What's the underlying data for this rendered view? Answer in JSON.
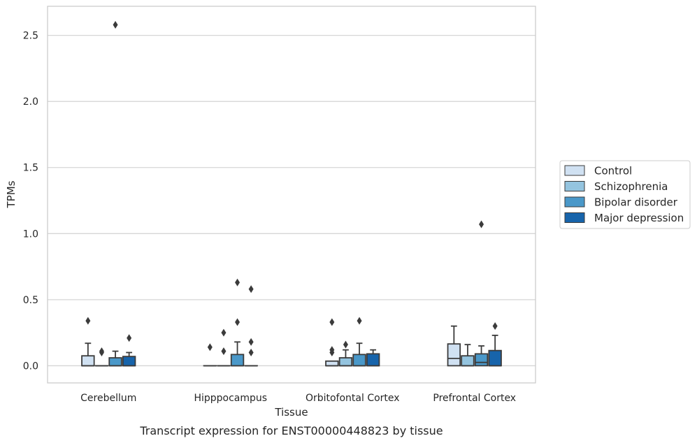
{
  "chart_data": {
    "type": "box",
    "caption": "Transcript expression for ENST00000448823 by tissue",
    "xlabel": "Tissue",
    "ylabel": "TPMs",
    "ylim": [
      -0.13,
      2.72
    ],
    "yticks": [
      "0.0",
      "0.5",
      "1.0",
      "1.5",
      "2.0",
      "2.5"
    ],
    "categories": [
      "Cerebellum",
      "Hipppocampus",
      "Orbitofontal Cortex",
      "Prefrontal Cortex"
    ],
    "grid": true,
    "legend_position": "right",
    "series": [
      {
        "name": "Control",
        "color": "#d0e1f2",
        "boxes": [
          {
            "q1": 0.0,
            "median": 0.0,
            "q3": 0.075,
            "whisker_low": 0.0,
            "whisker_high": 0.17,
            "outliers": [
              0.34
            ]
          },
          {
            "q1": 0.0,
            "median": 0.0,
            "q3": 0.0,
            "whisker_low": 0.0,
            "whisker_high": 0.0,
            "outliers": [
              0.14
            ]
          },
          {
            "q1": 0.0,
            "median": 0.0,
            "q3": 0.035,
            "whisker_low": 0.0,
            "whisker_high": 0.035,
            "outliers": [
              0.1,
              0.12,
              0.33
            ]
          },
          {
            "q1": 0.0,
            "median": 0.055,
            "q3": 0.165,
            "whisker_low": 0.0,
            "whisker_high": 0.3,
            "outliers": []
          }
        ]
      },
      {
        "name": "Schizophrenia",
        "color": "#94c4df",
        "boxes": [
          {
            "q1": 0.0,
            "median": 0.0,
            "q3": 0.0,
            "whisker_low": 0.0,
            "whisker_high": 0.0,
            "outliers": [
              0.1,
              0.11
            ]
          },
          {
            "q1": 0.0,
            "median": 0.0,
            "q3": 0.0,
            "whisker_low": 0.0,
            "whisker_high": 0.0,
            "outliers": [
              0.11,
              0.25
            ]
          },
          {
            "q1": 0.0,
            "median": 0.0,
            "q3": 0.06,
            "whisker_low": 0.0,
            "whisker_high": 0.12,
            "outliers": [
              0.16
            ]
          },
          {
            "q1": 0.0,
            "median": 0.0,
            "q3": 0.075,
            "whisker_low": 0.0,
            "whisker_high": 0.16,
            "outliers": []
          }
        ]
      },
      {
        "name": "Bipolar disorder",
        "color": "#4a98c9",
        "boxes": [
          {
            "q1": 0.0,
            "median": 0.0,
            "q3": 0.06,
            "whisker_low": 0.0,
            "whisker_high": 0.11,
            "outliers": [
              2.58
            ]
          },
          {
            "q1": 0.0,
            "median": 0.0,
            "q3": 0.085,
            "whisker_low": 0.0,
            "whisker_high": 0.18,
            "outliers": [
              0.33,
              0.63
            ]
          },
          {
            "q1": 0.0,
            "median": 0.0,
            "q3": 0.085,
            "whisker_low": 0.0,
            "whisker_high": 0.17,
            "outliers": [
              0.34
            ]
          },
          {
            "q1": 0.0,
            "median": 0.025,
            "q3": 0.09,
            "whisker_low": 0.0,
            "whisker_high": 0.15,
            "outliers": [
              1.07
            ]
          }
        ]
      },
      {
        "name": "Major depression",
        "color": "#1764ab",
        "boxes": [
          {
            "q1": 0.0,
            "median": 0.0,
            "q3": 0.07,
            "whisker_low": 0.0,
            "whisker_high": 0.1,
            "outliers": [
              0.21
            ]
          },
          {
            "q1": 0.0,
            "median": 0.0,
            "q3": 0.0,
            "whisker_low": 0.0,
            "whisker_high": 0.0,
            "outliers": [
              0.1,
              0.18,
              0.58
            ]
          },
          {
            "q1": 0.0,
            "median": 0.0,
            "q3": 0.09,
            "whisker_low": 0.0,
            "whisker_high": 0.12,
            "outliers": []
          },
          {
            "q1": 0.0,
            "median": 0.0,
            "q3": 0.115,
            "whisker_low": 0.0,
            "whisker_high": 0.23,
            "outliers": [
              0.3
            ]
          }
        ]
      }
    ]
  }
}
